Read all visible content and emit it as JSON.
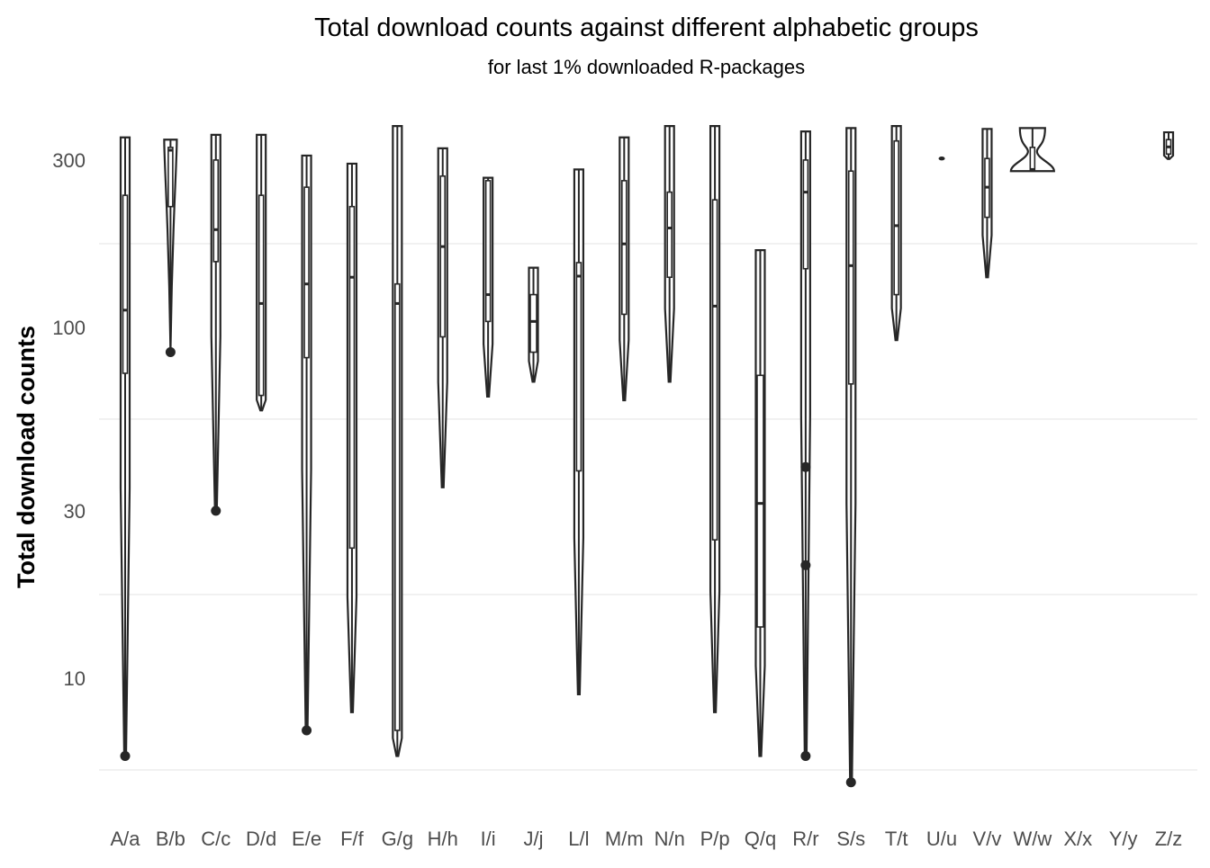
{
  "chart_data": {
    "type": "violin+box",
    "title": "Total download counts against different alphabetic groups",
    "subtitle": "for last 1% downloaded R-packages",
    "xlabel": "",
    "ylabel": "Total download counts",
    "y_scale": "log10",
    "ylim": [
      4.8,
      400
    ],
    "y_ticks": [
      10,
      30,
      100,
      300
    ],
    "y_tick_labels": [
      "10",
      "30",
      "100",
      "300"
    ],
    "grid": "minor horizontal only",
    "line_color": "#262626",
    "grid_color": "#ebebeb",
    "categories": [
      "A/a",
      "B/b",
      "C/c",
      "D/d",
      "E/e",
      "F/f",
      "G/g",
      "H/h",
      "I/i",
      "J/j",
      "L/l",
      "M/m",
      "N/n",
      "P/p",
      "Q/q",
      "R/r",
      "S/s",
      "T/t",
      "U/u",
      "V/v",
      "W/w",
      "X/x",
      "Y/y",
      "Z/z"
    ],
    "groups": [
      {
        "min": 6,
        "q1": 74,
        "median": 112,
        "q3": 238,
        "max": 348,
        "outliers": [
          6
        ]
      },
      {
        "min": 85,
        "q1": 221,
        "median": 320,
        "q3": 326,
        "max": 343,
        "outliers": [
          85
        ]
      },
      {
        "min": 30,
        "q1": 154,
        "median": 190,
        "q3": 300,
        "max": 354,
        "outliers": [
          30
        ]
      },
      {
        "min": 58,
        "q1": 64,
        "median": 117,
        "q3": 238,
        "max": 354,
        "outliers": []
      },
      {
        "min": 7.1,
        "q1": 82,
        "median": 133,
        "q3": 251,
        "max": 309,
        "outliers": [
          7.1
        ]
      },
      {
        "min": 8,
        "q1": 23.5,
        "median": 139,
        "q3": 221,
        "max": 293,
        "outliers": []
      },
      {
        "min": 6,
        "q1": 7.1,
        "median": 117,
        "q3": 133,
        "max": 375,
        "outliers": []
      },
      {
        "min": 35,
        "q1": 94,
        "median": 170,
        "q3": 270,
        "max": 324,
        "outliers": []
      },
      {
        "min": 63.5,
        "q1": 104,
        "median": 124,
        "q3": 262,
        "max": 267,
        "outliers": []
      },
      {
        "min": 70,
        "q1": 85,
        "median": 104,
        "q3": 124,
        "max": 148,
        "outliers": []
      },
      {
        "min": 9,
        "q1": 39,
        "median": 140,
        "q3": 153,
        "max": 282,
        "outliers": []
      },
      {
        "min": 62,
        "q1": 109,
        "median": 173,
        "q3": 262,
        "max": 348,
        "outliers": []
      },
      {
        "min": 70,
        "q1": 139,
        "median": 192,
        "q3": 243,
        "max": 375,
        "outliers": []
      },
      {
        "min": 8,
        "q1": 24.8,
        "median": 115,
        "q3": 231,
        "max": 375,
        "outliers": []
      },
      {
        "min": 6,
        "q1": 14,
        "median": 31.5,
        "q3": 73,
        "max": 166,
        "outliers": []
      },
      {
        "min": 6,
        "q1": 147,
        "median": 243,
        "q3": 300,
        "max": 362,
        "outliers": [
          40,
          21,
          6
        ]
      },
      {
        "min": 5.05,
        "q1": 69,
        "median": 150,
        "q3": 279,
        "max": 370,
        "outliers": [
          5.05
        ]
      },
      {
        "min": 92,
        "q1": 124,
        "median": 195,
        "q3": 340,
        "max": 375,
        "outliers": []
      },
      {
        "min": 303,
        "q1": 303,
        "median": 303,
        "q3": 303,
        "max": 303,
        "outliers": []
      },
      {
        "min": 139,
        "q1": 206,
        "median": 251,
        "q3": 303,
        "max": 368,
        "outliers": []
      },
      {
        "min": 279,
        "q1": 281,
        "median": 282,
        "q3": 326,
        "max": 370,
        "outliers": []
      },
      null,
      null,
      {
        "min": 302,
        "q1": 312,
        "median": 327,
        "q3": 343,
        "max": 360,
        "outliers": []
      }
    ]
  }
}
